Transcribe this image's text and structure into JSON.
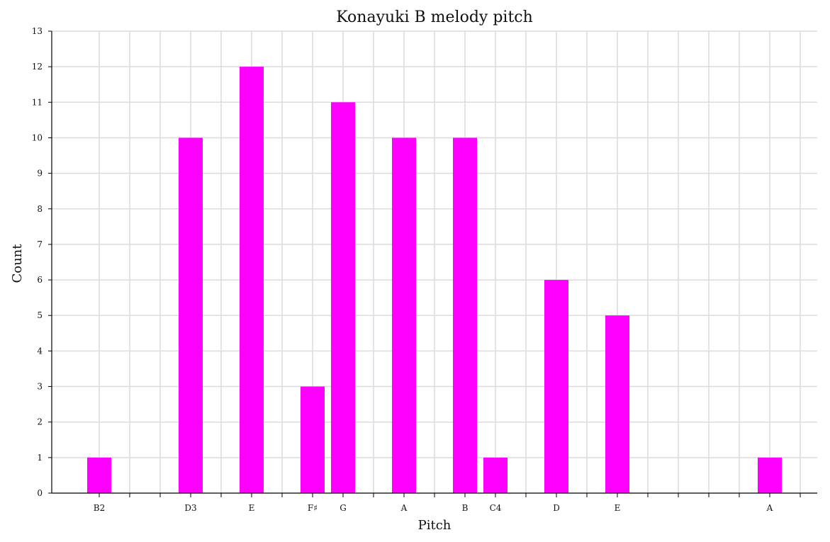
{
  "chart_data": {
    "type": "bar",
    "title": "Konayuki B melody pitch",
    "xlabel": "Pitch",
    "ylabel": "Count",
    "ylim": [
      0,
      13
    ],
    "yticks": [
      0,
      1,
      2,
      3,
      4,
      5,
      6,
      7,
      8,
      9,
      10,
      11,
      12,
      13
    ],
    "x_slot_count": 24,
    "grid": true,
    "color": "#ff00ff",
    "categories": [
      "B2",
      "D3",
      "E",
      "F♯",
      "G",
      "A",
      "B",
      "C4",
      "D",
      "E",
      "A"
    ],
    "slot_index": [
      0,
      3,
      5,
      7,
      8,
      10,
      12,
      13,
      15,
      17,
      22
    ],
    "values": [
      1,
      10,
      12,
      3,
      11,
      10,
      10,
      1,
      6,
      5,
      1
    ]
  }
}
